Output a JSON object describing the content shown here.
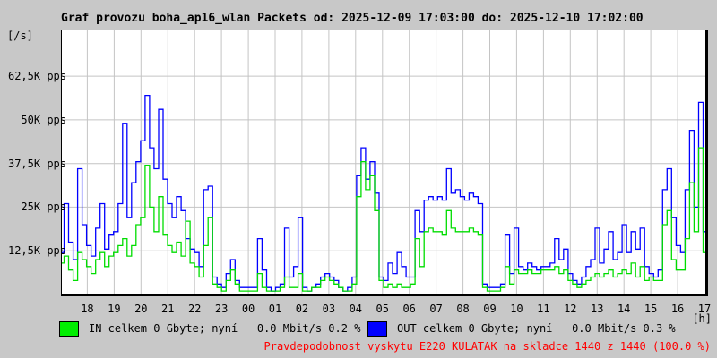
{
  "title": "Graf provozu boha_ap16_wlan Packets od: 2025-12-09 17:03:00 do: 2025-12-10 17:02:00",
  "y_axis": {
    "unit_label": "[/s]",
    "ticks": [
      {
        "label": "62,5K pps",
        "value_kpps": 62.5
      },
      {
        "label": "50K pps",
        "value_kpps": 50
      },
      {
        "label": "37,5K pps",
        "value_kpps": 37.5
      },
      {
        "label": "25K pps",
        "value_kpps": 25
      },
      {
        "label": "12,5K pps",
        "value_kpps": 12.5
      }
    ]
  },
  "x_axis": {
    "unit_label": "[h]",
    "ticks": [
      "18",
      "19",
      "20",
      "21",
      "22",
      "23",
      "00",
      "01",
      "02",
      "03",
      "04",
      "05",
      "06",
      "07",
      "08",
      "09",
      "10",
      "11",
      "12",
      "13",
      "14",
      "15",
      "16",
      "17"
    ]
  },
  "legend": {
    "in": {
      "swatch_color": "#00ee00",
      "label": "IN celkem 0 Gbyte; nyní   0.0 Mbit/s 0.2 %"
    },
    "out": {
      "swatch_color": "#0000ff",
      "label": "OUT celkem 0 Gbyte; nyní   0.0 Mbit/s 0.3 %"
    }
  },
  "status_line": {
    "text": "Pravdepodobnost vyskytu E220 KULATAK na skladce 1440 z 1440 (100.0 %)",
    "color": "#ff0000"
  },
  "chart_data": {
    "type": "line",
    "title": "Graf provozu boha_ap16_wlan Packets",
    "time_range": {
      "from": "2025-12-09 17:03:00",
      "to": "2025-12-10 17:02:00"
    },
    "x_total_min": 1439,
    "x_first_tick_offset_min": 57,
    "x_tick_step_min": 60,
    "sample_interval_min": 10,
    "ylim_kpps": [
      0,
      75.6
    ],
    "gridline_values_kpps": [
      12.5,
      25,
      37.5,
      50,
      62.5
    ],
    "grid_color": "#c4c4c4",
    "legend_position": "bottom",
    "series": [
      {
        "name": "OUT",
        "color": "#0000ff",
        "values_kpps": [
          12,
          26,
          15,
          10,
          36,
          20,
          14,
          11,
          19,
          26,
          13,
          17,
          18,
          26,
          49,
          22,
          32,
          38,
          44,
          57,
          42,
          36,
          53,
          33,
          26,
          22,
          28,
          24,
          16,
          13,
          12,
          8,
          30,
          31,
          5,
          3,
          2,
          6,
          10,
          4,
          2,
          2,
          2,
          2,
          16,
          7,
          2,
          1,
          2,
          3,
          19,
          5,
          8,
          22,
          2,
          1,
          2,
          3,
          5,
          6,
          5,
          4,
          2,
          1,
          2,
          5,
          34,
          42,
          33,
          38,
          29,
          5,
          4,
          9,
          6,
          12,
          8,
          5,
          5,
          24,
          18,
          27,
          28,
          27,
          28,
          27,
          36,
          29,
          30,
          28,
          27,
          29,
          28,
          26,
          3,
          2,
          2,
          2,
          3,
          17,
          6,
          19,
          8,
          7,
          9,
          8,
          7,
          8,
          8,
          9,
          16,
          10,
          13,
          6,
          4,
          3,
          5,
          8,
          10,
          19,
          9,
          13,
          18,
          10,
          12,
          20,
          12,
          18,
          13,
          19,
          8,
          6,
          5,
          7,
          30,
          36,
          22,
          14,
          12,
          30,
          47,
          25,
          55,
          18
        ]
      },
      {
        "name": "IN",
        "color": "#00dd00",
        "values_kpps": [
          9,
          11,
          7,
          4,
          12,
          10,
          8,
          6,
          10,
          12,
          8,
          11,
          12,
          14,
          16,
          11,
          14,
          20,
          22,
          37,
          25,
          18,
          28,
          17,
          14,
          12,
          15,
          11,
          21,
          9,
          8,
          5,
          14,
          22,
          3,
          2,
          1,
          4,
          7,
          3,
          1,
          1,
          1,
          1,
          6,
          2,
          1,
          1,
          1,
          2,
          5,
          2,
          2,
          6,
          1,
          1,
          2,
          2,
          4,
          5,
          4,
          3,
          2,
          1,
          1,
          3,
          28,
          38,
          30,
          34,
          24,
          4,
          2,
          3,
          2,
          3,
          2,
          2,
          3,
          16,
          8,
          18,
          19,
          18,
          18,
          17,
          24,
          19,
          18,
          18,
          18,
          19,
          18,
          17,
          2,
          1,
          1,
          1,
          2,
          8,
          3,
          7,
          6,
          6,
          7,
          6,
          6,
          7,
          7,
          7,
          8,
          6,
          7,
          4,
          3,
          2,
          3,
          4,
          5,
          6,
          5,
          6,
          7,
          5,
          6,
          7,
          6,
          9,
          5,
          8,
          4,
          5,
          4,
          4,
          20,
          24,
          10,
          7,
          7,
          16,
          32,
          18,
          42,
          12
        ]
      }
    ]
  }
}
